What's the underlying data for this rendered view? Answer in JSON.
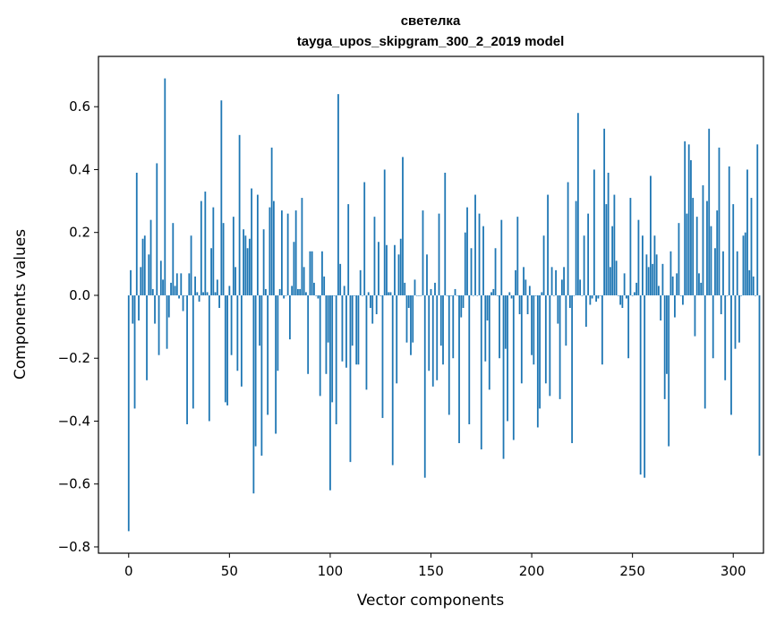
{
  "chart_data": {
    "type": "bar",
    "title": "светелка",
    "subtitle": "tayga_upos_skipgram_300_2_2019 model",
    "xlabel": "Vector components",
    "ylabel": "Components values",
    "xlim": [
      -15,
      315
    ],
    "ylim": [
      -0.82,
      0.76
    ],
    "x_ticks": [
      0,
      50,
      100,
      150,
      200,
      250,
      300
    ],
    "y_ticks": [
      -0.8,
      -0.6,
      -0.4,
      -0.2,
      0.0,
      0.2,
      0.4,
      0.6
    ],
    "x_tick_labels": [
      "0",
      "50",
      "100",
      "150",
      "200",
      "250",
      "300"
    ],
    "y_tick_labels": [
      "−0.8",
      "−0.6",
      "−0.4",
      "−0.2",
      "0.0",
      "0.2",
      "0.4",
      "0.6"
    ],
    "bar_color": "#1f77b4",
    "grid": false,
    "values": [
      -0.75,
      0.08,
      -0.09,
      -0.36,
      0.39,
      -0.08,
      0.09,
      0.18,
      0.19,
      -0.27,
      0.13,
      0.24,
      0.02,
      -0.09,
      0.42,
      -0.19,
      0.11,
      0.05,
      0.69,
      -0.17,
      -0.07,
      0.04,
      0.23,
      0.03,
      0.07,
      -0.01,
      0.07,
      -0.05,
      0.0,
      -0.41,
      0.07,
      0.19,
      -0.36,
      0.06,
      0.01,
      -0.02,
      0.3,
      0.01,
      0.33,
      0.01,
      -0.4,
      0.15,
      0.28,
      0.01,
      0.05,
      -0.04,
      0.62,
      0.23,
      -0.34,
      -0.35,
      0.03,
      -0.19,
      0.25,
      0.09,
      -0.24,
      0.51,
      -0.29,
      0.21,
      0.19,
      0.15,
      0.18,
      0.34,
      -0.63,
      -0.48,
      0.32,
      -0.16,
      -0.51,
      0.21,
      0.02,
      -0.38,
      0.28,
      0.47,
      0.3,
      -0.44,
      -0.24,
      0.02,
      0.27,
      -0.01,
      0.0,
      0.26,
      -0.14,
      0.03,
      0.17,
      0.27,
      0.02,
      0.02,
      0.31,
      0.09,
      0.01,
      -0.25,
      0.14,
      0.14,
      0.04,
      0.0,
      -0.01,
      -0.32,
      0.14,
      0.06,
      -0.25,
      -0.15,
      -0.62,
      -0.34,
      0.0,
      -0.41,
      0.64,
      0.1,
      -0.21,
      0.03,
      -0.23,
      0.29,
      -0.53,
      -0.16,
      0.0,
      -0.22,
      -0.22,
      0.08,
      0.0,
      0.36,
      -0.3,
      0.01,
      -0.04,
      -0.09,
      0.25,
      -0.06,
      0.17,
      0.0,
      -0.39,
      0.4,
      0.16,
      0.01,
      0.01,
      -0.54,
      0.16,
      -0.28,
      0.13,
      0.18,
      0.44,
      0.04,
      -0.15,
      -0.04,
      -0.19,
      -0.15,
      0.05,
      0.0,
      0.0,
      0.0,
      0.27,
      -0.58,
      0.13,
      -0.24,
      0.02,
      -0.29,
      0.04,
      -0.27,
      0.26,
      -0.16,
      -0.22,
      0.39,
      0.0,
      -0.38,
      0.0,
      -0.2,
      0.02,
      0.0,
      -0.47,
      -0.07,
      -0.04,
      0.2,
      0.28,
      -0.41,
      0.15,
      0.0,
      0.32,
      0.0,
      0.26,
      -0.49,
      0.22,
      -0.21,
      -0.08,
      -0.3,
      0.01,
      0.02,
      0.15,
      0.0,
      -0.2,
      0.24,
      -0.52,
      -0.17,
      -0.4,
      0.01,
      -0.01,
      -0.46,
      0.08,
      0.25,
      -0.06,
      -0.28,
      0.09,
      0.05,
      -0.06,
      0.03,
      -0.19,
      -0.22,
      0.0,
      -0.42,
      -0.36,
      0.01,
      0.19,
      -0.28,
      0.32,
      -0.32,
      0.09,
      0.0,
      0.08,
      -0.09,
      -0.33,
      0.05,
      0.09,
      -0.16,
      0.36,
      -0.04,
      -0.47,
      0.0,
      0.3,
      0.58,
      0.05,
      0.0,
      0.19,
      -0.1,
      0.26,
      -0.03,
      -0.01,
      0.4,
      -0.02,
      -0.01,
      0.0,
      -0.22,
      0.53,
      0.29,
      0.39,
      0.09,
      0.22,
      0.32,
      0.11,
      0.0,
      -0.03,
      -0.04,
      0.07,
      -0.01,
      -0.2,
      0.31,
      0.0,
      0.01,
      0.04,
      0.24,
      -0.57,
      0.19,
      -0.58,
      0.13,
      0.09,
      0.38,
      0.1,
      0.19,
      0.13,
      0.03,
      -0.08,
      0.1,
      -0.33,
      -0.25,
      -0.48,
      0.14,
      0.06,
      -0.07,
      0.07,
      0.23,
      0.0,
      -0.03,
      0.49,
      0.26,
      0.48,
      0.43,
      0.31,
      -0.13,
      0.25,
      0.07,
      0.04,
      0.35,
      -0.36,
      0.3,
      0.53,
      0.22,
      -0.2,
      0.15,
      0.27,
      0.47,
      -0.06,
      0.14,
      -0.27,
      0.0,
      0.41,
      -0.38,
      0.29,
      -0.17,
      0.14,
      -0.15,
      0.0,
      0.19,
      0.2,
      0.4,
      0.08,
      0.31,
      0.06,
      0.0,
      0.48,
      -0.51
    ]
  }
}
